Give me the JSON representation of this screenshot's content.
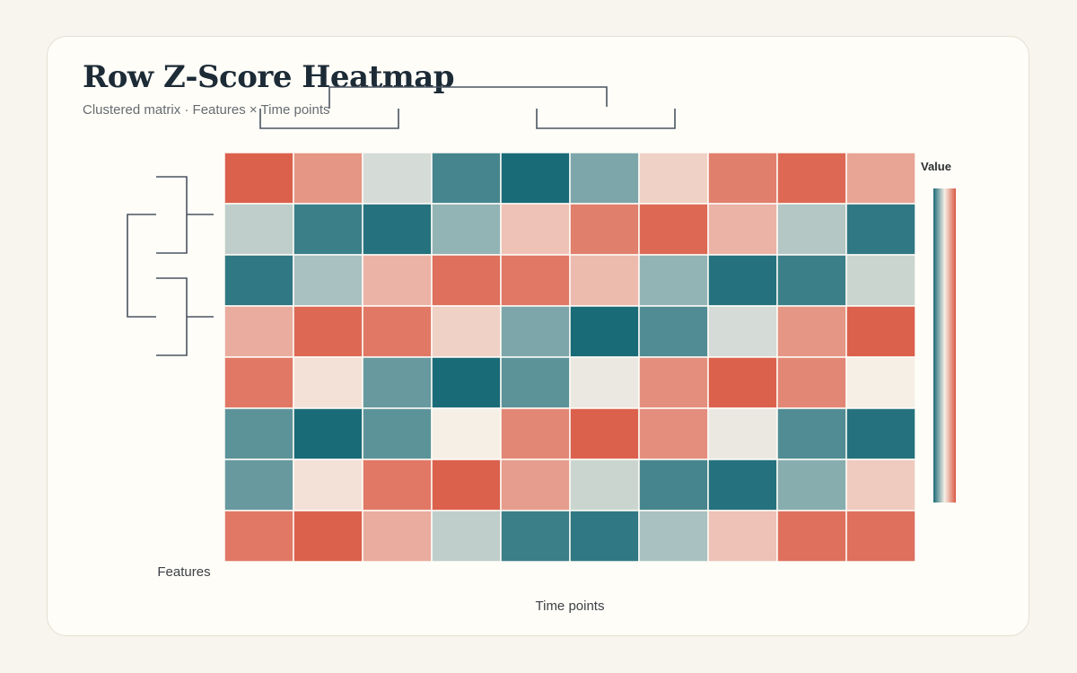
{
  "header": {
    "title": "Row Z-Score Heatmap",
    "subtitle": "Clustered matrix · Features × Time points"
  },
  "chart_data": {
    "type": "heatmap",
    "title": "Row Z-Score Heatmap",
    "subtitle": "Clustered matrix · Features × Time points",
    "xlabel": "Time points",
    "ylabel": "Features",
    "legend_title": "Value",
    "legend_placement": "right",
    "colorscale": [
      "#1a6b78",
      "#f6efe6",
      "#da5a45"
    ],
    "value_range": [
      -2,
      2
    ],
    "rows": 8,
    "cols": 10,
    "values": [
      [
        1.9,
        1.2,
        -0.3,
        -1.6,
        -2.0,
        -1.1,
        0.4,
        1.5,
        1.8,
        1.0
      ],
      [
        -0.5,
        -1.7,
        -1.9,
        -0.9,
        0.6,
        1.5,
        1.8,
        0.8,
        -0.6,
        -1.8
      ],
      [
        -1.8,
        -0.7,
        0.8,
        1.7,
        1.6,
        0.7,
        -0.9,
        -1.9,
        -1.7,
        -0.4
      ],
      [
        0.9,
        1.8,
        1.6,
        0.4,
        -1.1,
        -2.0,
        -1.5,
        -0.3,
        1.2,
        1.9
      ],
      [
        1.6,
        0.2,
        -1.3,
        -2.0,
        -1.4,
        -0.1,
        1.3,
        1.9,
        1.4,
        0.0
      ],
      [
        -1.4,
        -2.0,
        -1.4,
        0.0,
        1.4,
        1.9,
        1.3,
        -0.1,
        -1.5,
        -1.9
      ],
      [
        -1.3,
        0.2,
        1.6,
        1.9,
        1.1,
        -0.4,
        -1.6,
        -1.9,
        -1.0,
        0.5
      ],
      [
        1.6,
        1.9,
        0.9,
        -0.5,
        -1.7,
        -1.8,
        -0.7,
        0.6,
        1.7,
        1.7
      ]
    ],
    "row_dendrogram": true,
    "col_dendrogram": true
  }
}
